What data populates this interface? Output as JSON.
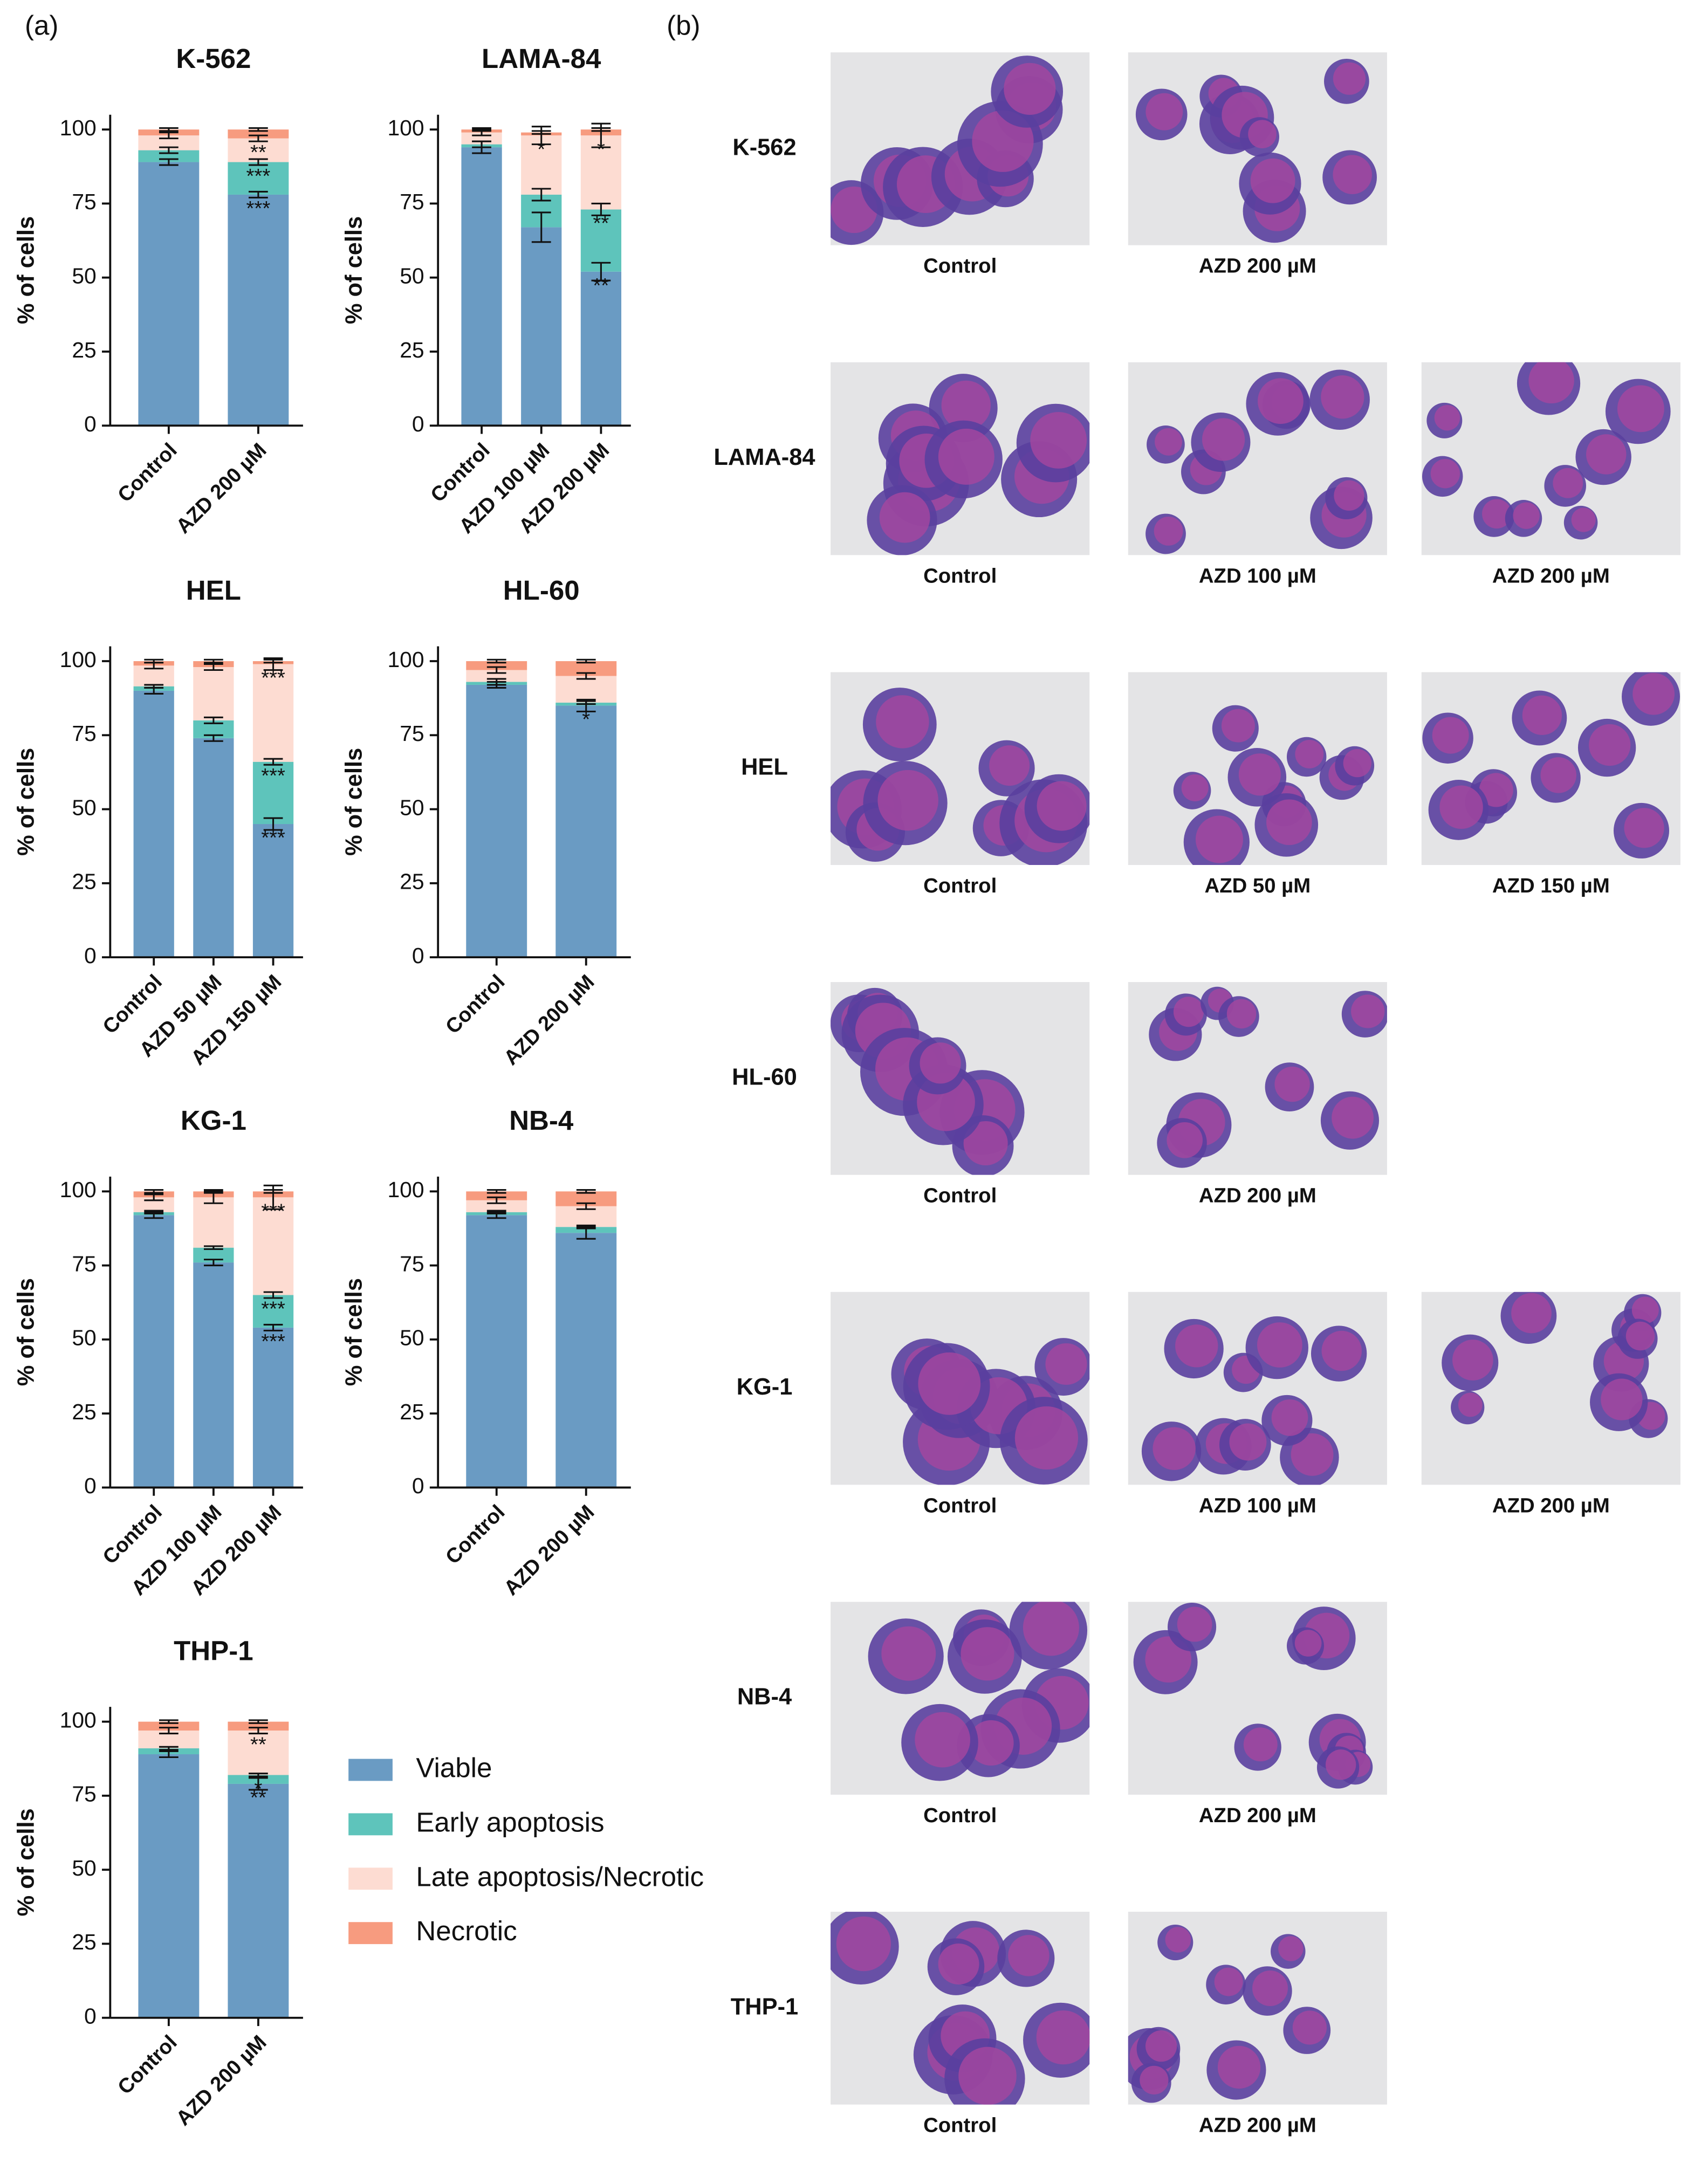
{
  "panel_labels": [
    "(a)",
    "(b)"
  ],
  "legend": {
    "entries": [
      {
        "name": "Viable",
        "color": "#6a9bc3"
      },
      {
        "name": "Early apoptosis",
        "color": "#5ec4bb"
      },
      {
        "name": "Late apoptosis/Necrotic",
        "color": "#fddcd2"
      },
      {
        "name": "Necrotic",
        "color": "#f79b7f"
      }
    ]
  },
  "chart_data": [
    {
      "type": "bar",
      "stacked": true,
      "title": "K-562",
      "ylabel": "% of cells",
      "categories": [
        "Control",
        "AZD 200 µM"
      ],
      "ylim": [
        0,
        105
      ],
      "yticks": [
        0,
        25,
        50,
        75,
        100
      ],
      "series": [
        {
          "values": [
            89,
            78
          ],
          "errors": [
            1,
            1
          ],
          "significance": [
            null,
            "***"
          ]
        },
        {
          "values": [
            4,
            11
          ],
          "errors": [
            1,
            1
          ],
          "significance": [
            null,
            "***"
          ]
        },
        {
          "values": [
            5,
            8
          ],
          "errors": [
            1,
            1
          ],
          "significance": [
            null,
            "**"
          ]
        },
        {
          "values": [
            2,
            3
          ],
          "errors": [
            0.5,
            0.5
          ],
          "significance": [
            null,
            null
          ]
        }
      ]
    },
    {
      "type": "bar",
      "stacked": true,
      "title": "LAMA-84",
      "ylabel": "% of cells",
      "categories": [
        "Control",
        "AZD 100 µM",
        "AZD 200 µM"
      ],
      "ylim": [
        0,
        105
      ],
      "yticks": [
        0,
        25,
        50,
        75,
        100
      ],
      "series": [
        {
          "values": [
            94,
            67,
            52
          ],
          "errors": [
            2,
            5,
            3
          ],
          "significance": [
            null,
            null,
            "**"
          ]
        },
        {
          "values": [
            1,
            11,
            21
          ],
          "errors": [
            1,
            2,
            2
          ],
          "significance": [
            null,
            null,
            "**"
          ]
        },
        {
          "values": [
            4,
            20,
            25
          ],
          "errors": [
            1,
            3,
            4
          ],
          "significance": [
            null,
            "*",
            "*"
          ]
        },
        {
          "values": [
            1,
            1,
            2
          ],
          "errors": [
            0.5,
            0.5,
            0.5
          ],
          "significance": [
            null,
            null,
            null
          ]
        }
      ]
    },
    {
      "type": "bar",
      "stacked": true,
      "title": "HEL",
      "ylabel": "% of cells",
      "categories": [
        "Control",
        "AZD 50 µM",
        "AZD 150 µM"
      ],
      "ylim": [
        0,
        105
      ],
      "yticks": [
        0,
        25,
        50,
        75,
        100
      ],
      "series": [
        {
          "values": [
            90,
            74,
            45
          ],
          "errors": [
            1,
            1,
            2
          ],
          "significance": [
            null,
            null,
            "***"
          ]
        },
        {
          "values": [
            1.5,
            6,
            21
          ],
          "errors": [
            0.5,
            1,
            1
          ],
          "significance": [
            null,
            null,
            "***"
          ]
        },
        {
          "values": [
            7,
            18,
            33
          ],
          "errors": [
            1,
            1,
            2
          ],
          "significance": [
            null,
            null,
            "***"
          ]
        },
        {
          "values": [
            1.5,
            2,
            1
          ],
          "errors": [
            0.5,
            0.5,
            0.5
          ],
          "significance": [
            null,
            null,
            null
          ]
        }
      ]
    },
    {
      "type": "bar",
      "stacked": true,
      "title": "HL-60",
      "ylabel": "% of cells",
      "categories": [
        "Control",
        "AZD 200 µM"
      ],
      "ylim": [
        0,
        105
      ],
      "yticks": [
        0,
        25,
        50,
        75,
        100
      ],
      "series": [
        {
          "values": [
            92,
            85
          ],
          "errors": [
            1,
            2
          ],
          "significance": [
            null,
            "*"
          ]
        },
        {
          "values": [
            1,
            1
          ],
          "errors": [
            1,
            0.5
          ],
          "significance": [
            null,
            null
          ]
        },
        {
          "values": [
            4,
            9
          ],
          "errors": [
            1,
            1
          ],
          "significance": [
            null,
            null
          ]
        },
        {
          "values": [
            3,
            5
          ],
          "errors": [
            0.5,
            0.5
          ],
          "significance": [
            null,
            null
          ]
        }
      ]
    },
    {
      "type": "bar",
      "stacked": true,
      "title": "KG-1",
      "ylabel": "% of cells",
      "categories": [
        "Control",
        "AZD 100 µM",
        "AZD 200 µM"
      ],
      "ylim": [
        0,
        105
      ],
      "yticks": [
        0,
        25,
        50,
        75,
        100
      ],
      "series": [
        {
          "values": [
            92,
            76,
            54
          ],
          "errors": [
            1,
            1,
            1
          ],
          "significance": [
            null,
            null,
            "***"
          ]
        },
        {
          "values": [
            1,
            5,
            11
          ],
          "errors": [
            0.5,
            0.5,
            1
          ],
          "significance": [
            null,
            null,
            "***"
          ]
        },
        {
          "values": [
            5,
            17,
            33
          ],
          "errors": [
            1,
            2,
            4
          ],
          "significance": [
            null,
            null,
            "***"
          ]
        },
        {
          "values": [
            2,
            2,
            2
          ],
          "errors": [
            0.5,
            0.5,
            0.5
          ],
          "significance": [
            null,
            null,
            null
          ]
        }
      ]
    },
    {
      "type": "bar",
      "stacked": true,
      "title": "NB-4",
      "ylabel": "% of cells",
      "categories": [
        "Control",
        "AZD 200 µM"
      ],
      "ylim": [
        0,
        105
      ],
      "yticks": [
        0,
        25,
        50,
        75,
        100
      ],
      "series": [
        {
          "values": [
            92,
            86
          ],
          "errors": [
            1,
            2
          ],
          "significance": [
            null,
            null
          ]
        },
        {
          "values": [
            1,
            2
          ],
          "errors": [
            0.5,
            0.5
          ],
          "significance": [
            null,
            null
          ]
        },
        {
          "values": [
            4,
            7
          ],
          "errors": [
            1,
            1
          ],
          "significance": [
            null,
            null
          ]
        },
        {
          "values": [
            3,
            5
          ],
          "errors": [
            0.5,
            0.5
          ],
          "significance": [
            null,
            null
          ]
        }
      ]
    },
    {
      "type": "bar",
      "stacked": true,
      "title": "THP-1",
      "ylabel": "% of cells",
      "categories": [
        "Control",
        "AZD 200 µM"
      ],
      "ylim": [
        0,
        105
      ],
      "yticks": [
        0,
        25,
        50,
        75,
        100
      ],
      "series": [
        {
          "values": [
            89,
            79
          ],
          "errors": [
            1,
            2
          ],
          "significance": [
            null,
            "**"
          ]
        },
        {
          "values": [
            2,
            3
          ],
          "errors": [
            0.5,
            0.5
          ],
          "significance": [
            null,
            "*"
          ]
        },
        {
          "values": [
            6,
            15
          ],
          "errors": [
            1,
            1
          ],
          "significance": [
            null,
            "**"
          ]
        },
        {
          "values": [
            3,
            3
          ],
          "errors": [
            0.5,
            0.5
          ],
          "significance": [
            null,
            null
          ]
        }
      ]
    }
  ],
  "micrographs": {
    "rows": [
      {
        "label": "K-562",
        "panels": [
          "Control",
          "AZD 200 µM"
        ]
      },
      {
        "label": "LAMA-84",
        "panels": [
          "Control",
          "AZD 100 µM",
          "AZD 200 µM"
        ]
      },
      {
        "label": "HEL",
        "panels": [
          "Control",
          "AZD 50 µM",
          "AZD 150 µM"
        ]
      },
      {
        "label": "HL-60",
        "panels": [
          "Control",
          "AZD 200 µM"
        ]
      },
      {
        "label": "KG-1",
        "panels": [
          "Control",
          "AZD 100 µM",
          "AZD 200 µM"
        ]
      },
      {
        "label": "NB-4",
        "panels": [
          "Control",
          "AZD 200 µM"
        ]
      },
      {
        "label": "THP-1",
        "panels": [
          "Control",
          "AZD 200 µM"
        ]
      }
    ]
  }
}
